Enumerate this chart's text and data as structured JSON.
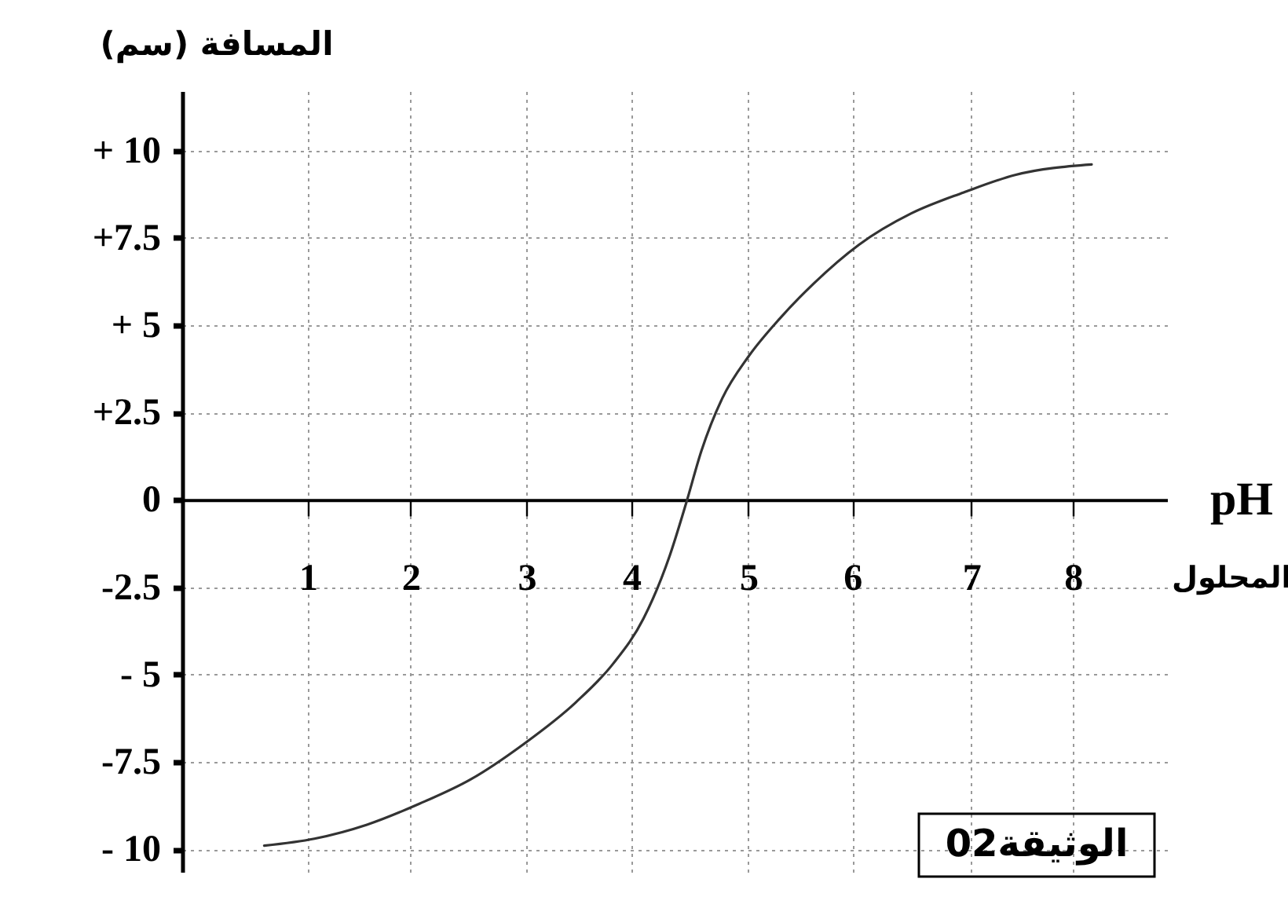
{
  "chart_data": {
    "type": "line",
    "xlabel": "pH",
    "ylabel": "المسافة (سم)",
    "annotations": [
      "المحلول",
      "الوثيقة02"
    ],
    "x": [
      0.6,
      1.06,
      1.54,
      2.02,
      2.49,
      2.97,
      3.45,
      3.79,
      4.07,
      4.31,
      4.46,
      4.6,
      4.79,
      5.03,
      5.32,
      5.63,
      6.04,
      6.52,
      7.0,
      7.47,
      8.17
    ],
    "series": [
      {
        "color": "#333333",
        "values": [
          -9.9,
          -9.7,
          -9.3,
          -8.7,
          -8.0,
          -7.0,
          -5.8,
          -4.7,
          -3.4,
          -1.6,
          -0.1,
          1.4,
          2.9,
          4.1,
          5.2,
          6.2,
          7.3,
          8.2,
          8.8,
          9.3,
          9.6
        ]
      }
    ],
    "xlim": [
      -0.15,
      8.86
    ],
    "xticks": [
      1,
      {
        "value": 1.94,
        "label": "2"
      },
      3,
      {
        "value": 3.96,
        "label": "4"
      },
      {
        "value": 5.03,
        "label": "5"
      },
      {
        "value": 5.98,
        "label": "6"
      },
      {
        "value": 7.07,
        "label": "7"
      },
      8
    ],
    "ylim": [
      -10.65,
      11.7
    ],
    "yticks": [
      {
        "value": -10,
        "label": "- 10"
      },
      {
        "value": -7.5,
        "label": "-7.5"
      },
      {
        "value": -5,
        "label": "- 5"
      },
      {
        "value": -2.5,
        "label": "-2.5"
      },
      0,
      {
        "value": 2.5,
        "label": "+2.5"
      },
      {
        "value": 5,
        "label": "+ 5"
      },
      {
        "value": 7.5,
        "label": "+7.5"
      },
      {
        "value": 10,
        "label": "+ 10"
      }
    ],
    "grid": true
  }
}
